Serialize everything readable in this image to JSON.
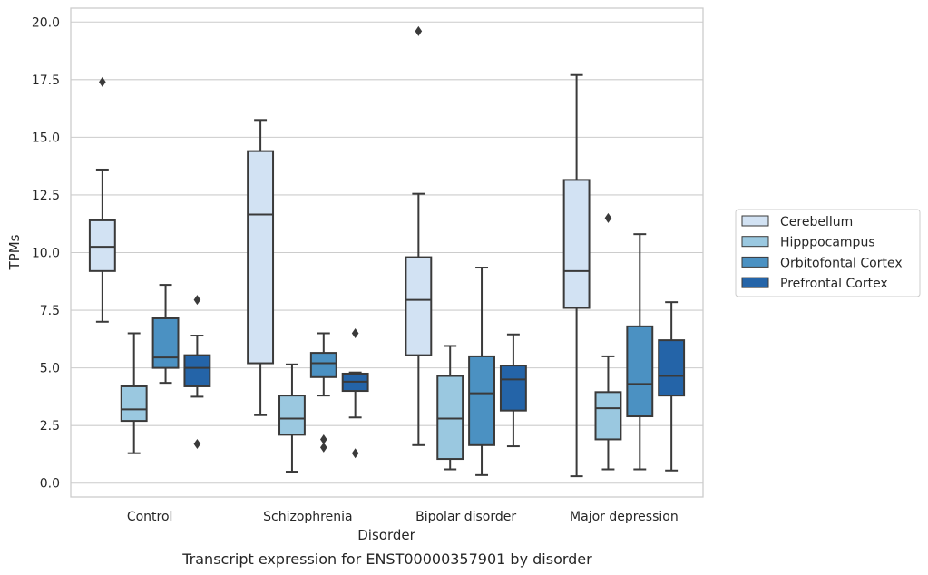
{
  "caption": "Transcript expression for ENST00000357901 by disorder",
  "chart_data": {
    "type": "box",
    "title": "",
    "xlabel": "Disorder",
    "ylabel": "TPMs",
    "ylim": [
      -0.6,
      20.6
    ],
    "yticks": [
      0.0,
      2.5,
      5.0,
      7.5,
      10.0,
      12.5,
      15.0,
      17.5,
      20.0
    ],
    "ytick_labels": [
      "0.0",
      "2.5",
      "5.0",
      "7.5",
      "10.0",
      "12.5",
      "15.0",
      "17.5",
      "20.0"
    ],
    "grid": "horizontal",
    "legend_position": "right",
    "categories": [
      "Control",
      "Schizophrenia",
      "Bipolar disorder",
      "Major depression"
    ],
    "series": [
      {
        "name": "Cerebellum",
        "color": "#d2e2f3",
        "boxes": [
          {
            "whisker_low": 7.0,
            "q1": 9.2,
            "median": 10.25,
            "q3": 11.4,
            "whisker_high": 13.6,
            "outliers": [
              17.4
            ]
          },
          {
            "whisker_low": 2.95,
            "q1": 5.2,
            "median": 11.65,
            "q3": 14.4,
            "whisker_high": 15.75,
            "outliers": []
          },
          {
            "whisker_low": 1.65,
            "q1": 5.55,
            "median": 7.95,
            "q3": 9.8,
            "whisker_high": 12.55,
            "outliers": [
              19.6
            ]
          },
          {
            "whisker_low": 0.3,
            "q1": 7.6,
            "median": 9.2,
            "q3": 13.15,
            "whisker_high": 17.7,
            "outliers": []
          }
        ]
      },
      {
        "name": "Hipppocampus",
        "color": "#9ac8e0",
        "boxes": [
          {
            "whisker_low": 1.3,
            "q1": 2.7,
            "median": 3.2,
            "q3": 4.2,
            "whisker_high": 6.5,
            "outliers": []
          },
          {
            "whisker_low": 0.5,
            "q1": 2.1,
            "median": 2.8,
            "q3": 3.8,
            "whisker_high": 5.15,
            "outliers": []
          },
          {
            "whisker_low": 0.6,
            "q1": 1.05,
            "median": 2.8,
            "q3": 4.65,
            "whisker_high": 5.95,
            "outliers": []
          },
          {
            "whisker_low": 0.6,
            "q1": 1.9,
            "median": 3.25,
            "q3": 3.95,
            "whisker_high": 5.5,
            "outliers": [
              11.5
            ]
          }
        ]
      },
      {
        "name": "Orbitofontal Cortex",
        "color": "#4b91c2",
        "boxes": [
          {
            "whisker_low": 4.35,
            "q1": 5.0,
            "median": 5.45,
            "q3": 7.15,
            "whisker_high": 8.6,
            "outliers": []
          },
          {
            "whisker_low": 3.8,
            "q1": 4.6,
            "median": 5.2,
            "q3": 5.65,
            "whisker_high": 6.5,
            "outliers": [
              1.9,
              1.55
            ]
          },
          {
            "whisker_low": 0.35,
            "q1": 1.65,
            "median": 3.9,
            "q3": 5.5,
            "whisker_high": 9.35,
            "outliers": []
          },
          {
            "whisker_low": 0.6,
            "q1": 2.9,
            "median": 4.3,
            "q3": 6.8,
            "whisker_high": 10.8,
            "outliers": []
          }
        ]
      },
      {
        "name": "Prefrontal Cortex",
        "color": "#2464a8",
        "boxes": [
          {
            "whisker_low": 3.75,
            "q1": 4.2,
            "median": 5.0,
            "q3": 5.55,
            "whisker_high": 6.4,
            "outliers": [
              7.95,
              1.7
            ]
          },
          {
            "whisker_low": 2.85,
            "q1": 4.0,
            "median": 4.4,
            "q3": 4.75,
            "whisker_high": 4.8,
            "outliers": [
              6.5,
              1.3
            ]
          },
          {
            "whisker_low": 1.6,
            "q1": 3.15,
            "median": 4.5,
            "q3": 5.1,
            "whisker_high": 6.45,
            "outliers": []
          },
          {
            "whisker_low": 0.55,
            "q1": 3.8,
            "median": 4.65,
            "q3": 6.2,
            "whisker_high": 7.85,
            "outliers": []
          }
        ]
      }
    ]
  }
}
